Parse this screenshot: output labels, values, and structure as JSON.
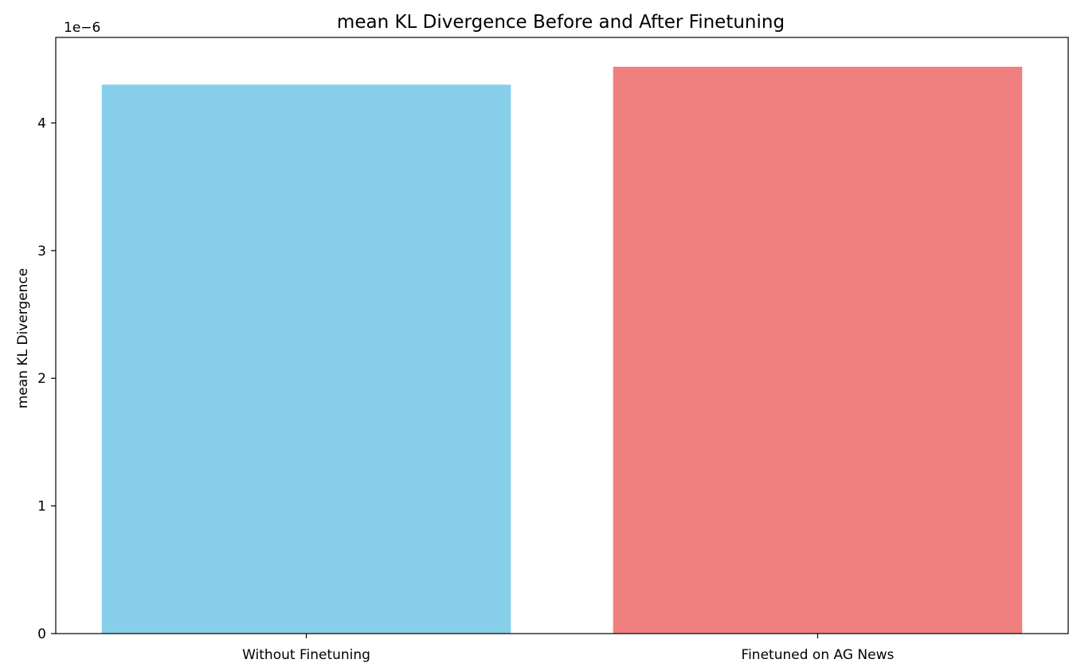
{
  "chart_data": {
    "type": "bar",
    "title": "mean KL Divergence Before and After Finetuning",
    "xlabel": "",
    "ylabel": "mean KL Divergence",
    "y_offset_label": "1e−6",
    "y_scale_factor": 1e-06,
    "categories": [
      "Without Finetuning",
      "Finetuned on AG News"
    ],
    "values": [
      4.3e-06,
      4.44e-06
    ],
    "colors": [
      "#87CEEB",
      "#F08080"
    ],
    "ylim": [
      0,
      4.67e-06
    ],
    "yticks": [
      0,
      1e-06,
      2e-06,
      3e-06,
      4e-06
    ],
    "ytick_labels": [
      "0",
      "1",
      "2",
      "3",
      "4"
    ],
    "grid": false,
    "legend": "none"
  }
}
